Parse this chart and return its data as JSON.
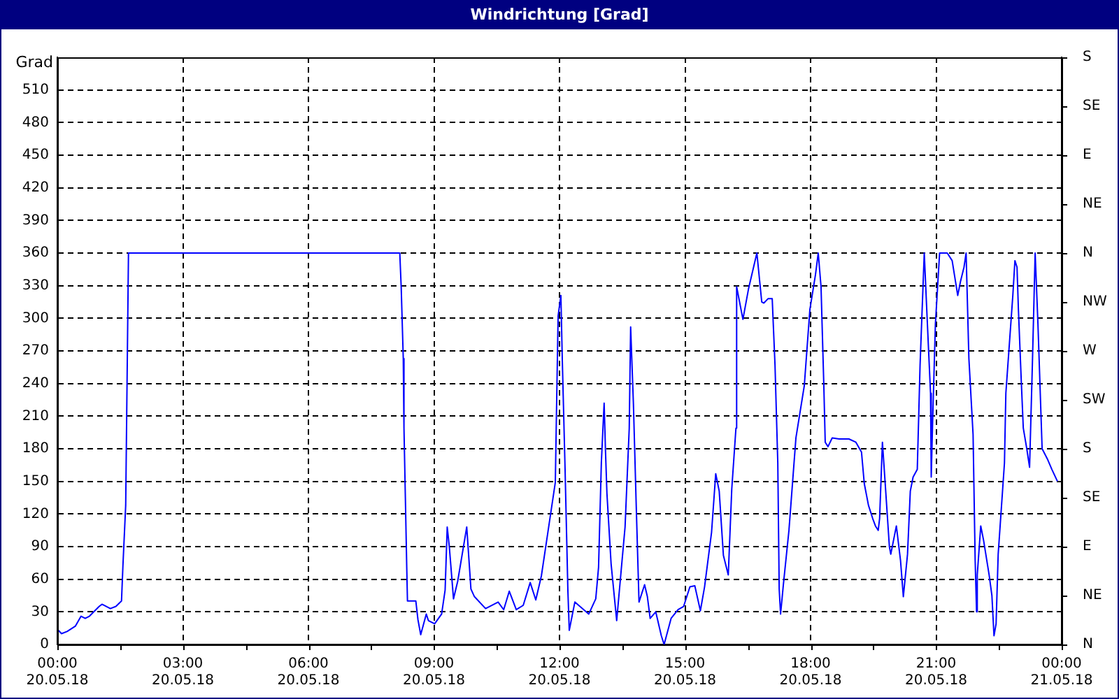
{
  "chart_data": {
    "type": "line",
    "title": "Windrichtung [Grad]",
    "ylabel": "Grad",
    "x": [
      "--05-20T00:00",
      "--05-20T00:06",
      "--05-20T00:14",
      "--05-20T00:26",
      "--05-20T00:34",
      "--05-20T00:40",
      "--05-20T00:46",
      "--05-20T01:00",
      "--05-20T01:04",
      "--05-20T01:16",
      "--05-20T01:24",
      "--05-20T01:32",
      "--05-20T01:34",
      "--05-20T01:38",
      "--05-20T01:42",
      "--05-20T08:11",
      "--05-20T08:13",
      "--05-20T08:16",
      "--05-20T08:17",
      "--05-20T08:19",
      "--05-20T08:21",
      "--05-20T08:22",
      "--05-20T08:34",
      "--05-20T08:37",
      "--05-20T08:41",
      "--05-20T08:49",
      "--05-20T08:52",
      "--05-20T09:01",
      "--05-20T09:11",
      "--05-20T09:16",
      "--05-20T09:19",
      "--05-20T09:22",
      "--05-20T09:28",
      "--05-20T09:34",
      "--05-20T09:47",
      "--05-20T09:53",
      "--05-20T09:58",
      "--05-20T10:14",
      "--05-20T10:32",
      "--05-20T10:40",
      "--05-20T10:48",
      "--05-20T10:58",
      "--05-20T11:08",
      "--05-20T11:18",
      "--05-20T11:26",
      "--05-20T11:34",
      "--05-20T11:54",
      "--05-20T11:58",
      "--05-20T12:02",
      "--05-20T12:04",
      "--05-20T12:08",
      "--05-20T12:12",
      "--05-20T12:14",
      "--05-20T12:22",
      "--05-20T12:42",
      "--05-20T12:52",
      "--05-20T12:56",
      "--05-20T13:00",
      "--05-20T13:04",
      "--05-20T13:06",
      "--05-20T13:08",
      "--05-20T13:14",
      "--05-20T13:22",
      "--05-20T13:28",
      "--05-20T13:34",
      "--05-20T13:40",
      "--05-20T13:42",
      "--05-20T13:46",
      "--05-20T13:50",
      "--05-20T13:54",
      "--05-20T14:02",
      "--05-20T14:06",
      "--05-20T14:10",
      "--05-20T14:18",
      "--05-20T14:26",
      "--05-20T14:30",
      "--05-20T14:40",
      "--05-20T14:50",
      "--05-20T14:58",
      "--05-20T15:07",
      "--05-20T15:14",
      "--05-20T15:22",
      "--05-20T15:28",
      "--05-20T15:38",
      "--05-20T15:44",
      "--05-20T15:49",
      "--05-20T15:55",
      "--05-20T16:02",
      "--05-20T16:07",
      "--05-20T16:13",
      "--05-20T16:14",
      "--05-20T16:17",
      "--05-20T16:23",
      "--05-20T16:31",
      "--05-20T16:43",
      "--05-20T16:50",
      "--05-20T16:53",
      "--05-20T16:59",
      "--05-20T17:05",
      "--05-20T17:09",
      "--05-20T17:13",
      "--05-20T17:15",
      "--05-20T17:17",
      "--05-20T17:21",
      "--05-20T17:29",
      "--05-20T17:39",
      "--05-20T17:51",
      "--05-20T17:59",
      "--05-20T18:07",
      "--05-20T18:11",
      "--05-20T18:15",
      "--05-20T18:19",
      "--05-20T18:21",
      "--05-20T18:25",
      "--05-20T18:31",
      "--05-20T18:41",
      "--05-20T18:55",
      "--05-20T19:05",
      "--05-20T19:13",
      "--05-20T19:17",
      "--05-20T19:23",
      "--05-20T19:29",
      "--05-20T19:33",
      "--05-20T19:37",
      "--05-20T19:39",
      "--05-20T19:43",
      "--05-20T19:47",
      "--05-20T19:53",
      "--05-20T19:55",
      "--05-20T20:03",
      "--05-20T20:09",
      "--05-20T20:13",
      "--05-20T20:19",
      "--05-20T20:23",
      "--05-20T20:27",
      "--05-20T20:33",
      "--05-20T20:37",
      "--05-20T20:43",
      "--05-20T20:47",
      "--05-20T20:52",
      "--05-20T20:53",
      "--05-20T20:55",
      "--05-20T20:59",
      "--05-20T21:05",
      "--05-20T21:16",
      "--05-20T21:23",
      "--05-20T21:31",
      "--05-20T21:35",
      "--05-20T21:40",
      "--05-20T21:43",
      "--05-20T21:47",
      "--05-20T21:53",
      "--05-20T21:56",
      "--05-20T21:58",
      "--05-20T21:59",
      "--05-20T22:04",
      "--05-20T22:08",
      "--05-20T22:16",
      "--05-20T22:20",
      "--05-20T22:23",
      "--05-20T22:26",
      "--05-20T22:29",
      "--05-20T22:38",
      "--05-20T22:40",
      "--05-20T22:50",
      "--05-20T22:53",
      "--05-20T22:56",
      "--05-20T22:58",
      "--05-20T23:02",
      "--05-20T23:05",
      "--05-20T23:10",
      "--05-20T23:14",
      "--05-20T23:18",
      "--05-20T23:22",
      "--05-20T23:26",
      "--05-20T23:32",
      "--05-20T23:40",
      "--05-20T23:46",
      "--05-20T23:54"
    ],
    "series": [
      {
        "color": "#0000ff",
        "values": [
          14,
          10,
          12,
          17,
          26,
          24,
          26,
          35,
          37,
          33,
          35,
          40,
          72,
          128,
          360,
          360,
          329,
          263,
          199,
          135,
          70,
          40,
          40,
          23,
          9,
          28,
          22,
          19,
          28,
          50,
          108,
          90,
          42,
          58,
          108,
          51,
          44,
          33,
          39,
          32,
          49,
          32,
          36,
          57,
          41,
          63,
          149,
          302,
          321,
          262,
          161,
          50,
          13,
          39,
          28,
          42,
          71,
          167,
          222,
          177,
          139,
          74,
          22,
          65,
          108,
          199,
          292,
          221,
          128,
          39,
          55,
          44,
          24,
          30,
          8,
          0,
          24,
          32,
          35,
          53,
          54,
          31,
          53,
          103,
          157,
          141,
          82,
          64,
          143,
          199,
          329,
          319,
          299,
          327,
          360,
          315,
          314,
          318,
          318,
          257,
          167,
          51,
          28,
          55,
          105,
          190,
          238,
          308,
          340,
          360,
          329,
          238,
          186,
          182,
          190,
          189,
          189,
          186,
          177,
          148,
          128,
          116,
          109,
          105,
          116,
          186,
          148,
          90,
          83,
          109,
          77,
          44,
          83,
          141,
          154,
          161,
          257,
          360,
          302,
          231,
          154,
          205,
          295,
          360,
          360,
          353,
          321,
          334,
          347,
          360,
          263,
          193,
          77,
          30,
          64,
          109,
          96,
          64,
          45,
          8,
          19,
          83,
          167,
          231,
          321,
          353,
          347,
          308,
          244,
          199,
          180,
          163,
          257,
          360,
          295,
          180,
          170,
          161,
          150
        ]
      }
    ],
    "xlim": [
      "--05-20T00:00",
      "--05-21T00:00"
    ],
    "xticks": [
      {
        "value": "--05-20T00:00",
        "label": "00:00\n20.05.18"
      },
      {
        "value": "--05-20T01:30",
        "label": null
      },
      {
        "value": "--05-20T03:00",
        "label": "03:00\n20.05.18"
      },
      {
        "value": "--05-20T04:30",
        "label": null
      },
      {
        "value": "--05-20T06:00",
        "label": "06:00\n20.05.18"
      },
      {
        "value": "--05-20T07:30",
        "label": null
      },
      {
        "value": "--05-20T09:00",
        "label": "09:00\n20.05.18"
      },
      {
        "value": "--05-20T10:30",
        "label": null
      },
      {
        "value": "--05-20T12:00",
        "label": "12:00\n20.05.18"
      },
      {
        "value": "--05-20T13:30",
        "label": null
      },
      {
        "value": "--05-20T15:00",
        "label": "15:00\n20.05.18"
      },
      {
        "value": "--05-20T16:30",
        "label": null
      },
      {
        "value": "--05-20T18:00",
        "label": "18:00\n20.05.18"
      },
      {
        "value": "--05-20T19:30",
        "label": null
      },
      {
        "value": "--05-20T21:00",
        "label": "21:00\n20.05.18"
      },
      {
        "value": "--05-20T22:30",
        "label": null
      },
      {
        "value": "--05-21T00:00",
        "label": "00:00\n21.05.18"
      }
    ],
    "ylim": [
      0,
      540
    ],
    "yticks": [
      0,
      30,
      60,
      90,
      120,
      150,
      180,
      210,
      240,
      270,
      300,
      330,
      360,
      390,
      420,
      450,
      480,
      510
    ],
    "y2_categories": [
      "S",
      "SE",
      "E",
      "NE",
      "N",
      "NW",
      "W",
      "SW",
      "S",
      "SE",
      "E",
      "NE",
      "N"
    ],
    "grid": true,
    "marker": "none",
    "line_style": "solid"
  }
}
